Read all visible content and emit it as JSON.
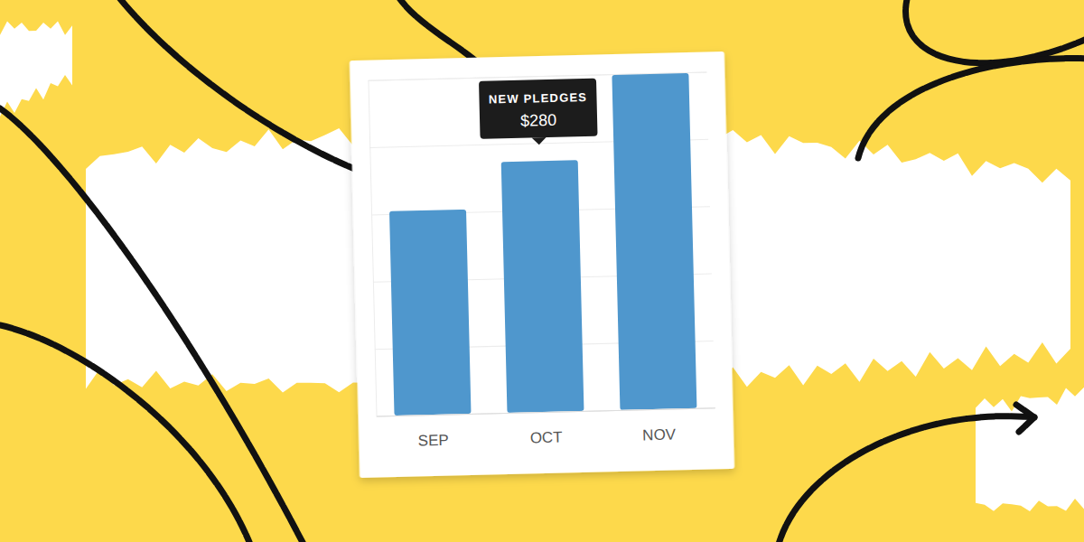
{
  "chart_data": {
    "type": "bar",
    "categories": [
      "SEP",
      "OCT",
      "NOV"
    ],
    "values": [
      228,
      280,
      374
    ],
    "color": "#4f97cd",
    "ylim": [
      0,
      375
    ],
    "yticks": [
      0,
      75,
      150,
      225,
      300,
      375
    ],
    "grid": true,
    "tick_labels": "x",
    "annotations": [
      {
        "category": "OCT",
        "title": "NEW PLEDGES",
        "text": "$280"
      }
    ]
  }
}
